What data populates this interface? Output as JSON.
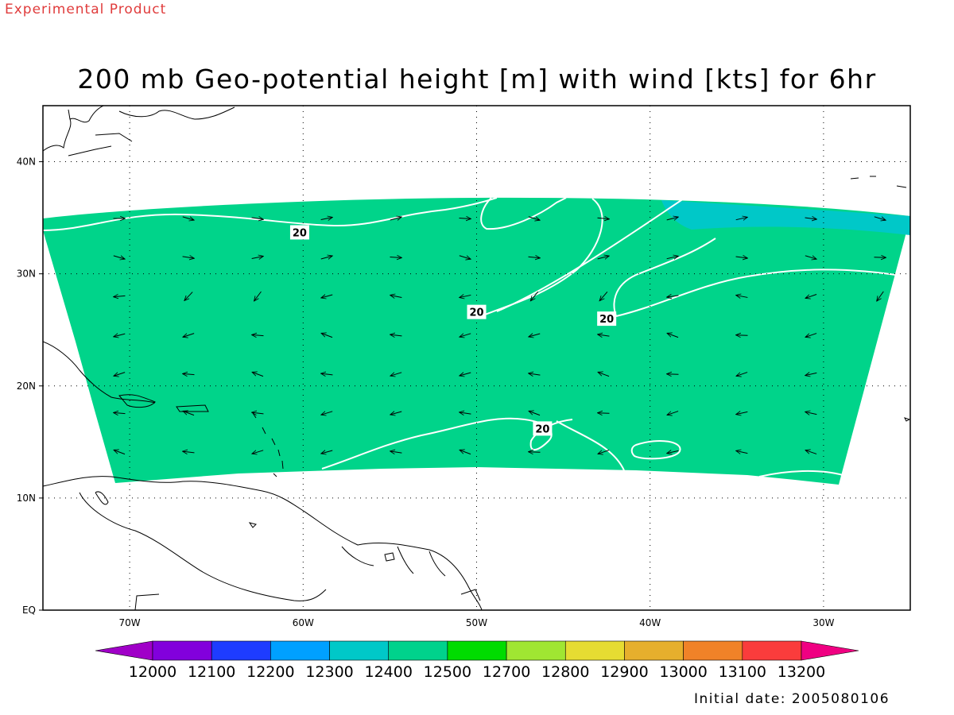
{
  "stamp": {
    "text": "Experimental Product",
    "color": "#e03c3c"
  },
  "title": "200 mb Geo-potential height [m] with wind [kts] for 6hr",
  "initial_date": "Initial date: 2005080106",
  "map": {
    "lon_range": [
      -75,
      -25
    ],
    "lat_range": [
      0,
      45
    ],
    "lon_ticks": [
      {
        "value": -70,
        "label": "70W"
      },
      {
        "value": -60,
        "label": "60W"
      },
      {
        "value": -50,
        "label": "50W"
      },
      {
        "value": -40,
        "label": "40W"
      },
      {
        "value": -30,
        "label": "30W"
      }
    ],
    "lat_ticks": [
      {
        "value": 0,
        "label": "EQ"
      },
      {
        "value": 10,
        "label": "10N"
      },
      {
        "value": 20,
        "label": "20N"
      },
      {
        "value": 30,
        "label": "30N"
      },
      {
        "value": 40,
        "label": "40N"
      }
    ],
    "grid": "dotted",
    "fill_main_color": "#00d48a",
    "fill_high_color": "#00c8c8",
    "contour_color": "#ffffff",
    "coastline_color": "#000000",
    "contour_labels": [
      {
        "text": "20",
        "lon": -60.2,
        "lat": 33.7
      },
      {
        "text": "20",
        "lon": -50.0,
        "lat": 26.6
      },
      {
        "text": "20",
        "lon": -42.5,
        "lat": 26.0
      },
      {
        "text": "20",
        "lon": -46.2,
        "lat": 16.2
      }
    ]
  },
  "colorbar": {
    "labels": [
      "12000",
      "12100",
      "12200",
      "12300",
      "12400",
      "12500",
      "12700",
      "12800",
      "12900",
      "13000",
      "13100",
      "13200"
    ],
    "colors": [
      "#a000c8",
      "#8200dc",
      "#1e3cff",
      "#00a0ff",
      "#00c8c8",
      "#00d28c",
      "#00dc00",
      "#a0e632",
      "#e6dc32",
      "#e6af2d",
      "#f08228",
      "#fa3c3c",
      "#f00082"
    ]
  }
}
